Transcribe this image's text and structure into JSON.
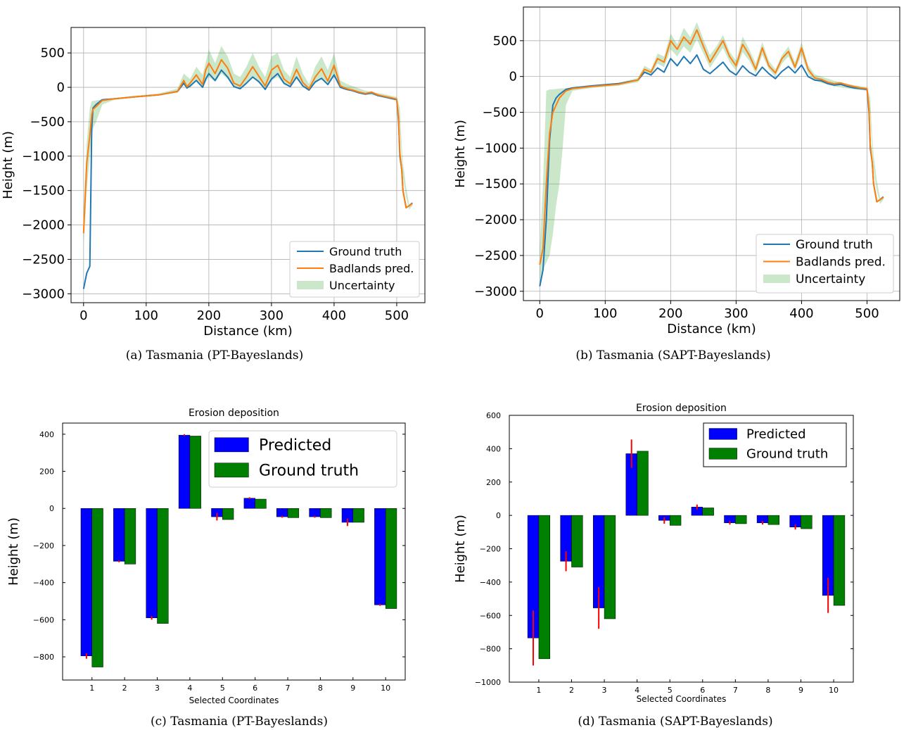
{
  "chart_data": [
    {
      "type": "line",
      "caption": "(a)  Tasmania (PT-Bayeslands)",
      "title": "",
      "xlabel": "Distance (km)",
      "ylabel": "Height (m)",
      "xlim": [
        -20,
        545
      ],
      "ylim": [
        -3130,
        870
      ],
      "xticks": [
        0,
        100,
        200,
        300,
        400,
        500
      ],
      "yticks": [
        500,
        0,
        -500,
        -1000,
        -1500,
        -2000,
        -2500,
        -3000
      ],
      "legend": {
        "position": "lower-right",
        "entries": [
          "Ground truth",
          "Badlands pred.",
          "Uncertainty"
        ]
      },
      "series": [
        {
          "name": "Ground truth",
          "color": "#1f77b4",
          "x": [
            0,
            5,
            10,
            13,
            15,
            20,
            30,
            50,
            80,
            120,
            150,
            160,
            165,
            170,
            180,
            190,
            195,
            200,
            210,
            220,
            230,
            240,
            250,
            260,
            270,
            280,
            290,
            300,
            310,
            320,
            330,
            340,
            350,
            360,
            370,
            380,
            390,
            400,
            410,
            420,
            430,
            440,
            450,
            460,
            470,
            480,
            490,
            495,
            500,
            503,
            505,
            508,
            510,
            515,
            520,
            525
          ],
          "y": [
            -2930,
            -2700,
            -2600,
            -600,
            -300,
            -250,
            -180,
            -165,
            -140,
            -110,
            -60,
            60,
            -10,
            20,
            100,
            0,
            120,
            200,
            100,
            250,
            150,
            10,
            -20,
            60,
            150,
            80,
            -30,
            120,
            200,
            60,
            10,
            150,
            20,
            -40,
            80,
            130,
            40,
            180,
            0,
            -30,
            -50,
            -80,
            -100,
            -80,
            -120,
            -140,
            -160,
            -170,
            -180,
            -500,
            -1000,
            -1200,
            -1500,
            -1750,
            -1720,
            -1680
          ]
        },
        {
          "name": "Badlands pred.",
          "color": "#ff7f0e",
          "x": [
            0,
            5,
            10,
            13,
            15,
            20,
            30,
            50,
            80,
            120,
            150,
            160,
            165,
            170,
            180,
            190,
            195,
            200,
            210,
            220,
            230,
            240,
            250,
            260,
            270,
            280,
            290,
            300,
            310,
            320,
            330,
            340,
            350,
            360,
            370,
            380,
            390,
            400,
            410,
            420,
            430,
            440,
            450,
            460,
            470,
            480,
            490,
            495,
            500,
            503,
            505,
            508,
            510,
            515,
            520,
            525
          ],
          "y": [
            -2120,
            -1100,
            -700,
            -400,
            -320,
            -280,
            -190,
            -165,
            -140,
            -110,
            -60,
            100,
            10,
            60,
            180,
            40,
            250,
            350,
            200,
            400,
            280,
            60,
            20,
            150,
            300,
            160,
            20,
            250,
            320,
            120,
            50,
            260,
            70,
            -20,
            150,
            270,
            90,
            320,
            20,
            -20,
            -40,
            -70,
            -90,
            -70,
            -110,
            -130,
            -150,
            -160,
            -170,
            -450,
            -950,
            -1200,
            -1500,
            -1750,
            -1720,
            -1690
          ]
        },
        {
          "name": "Uncertainty",
          "color": "#2ca02c",
          "opacity": 0.25,
          "x": [
            0,
            5,
            10,
            13,
            15,
            20,
            30,
            50,
            80,
            120,
            150,
            160,
            170,
            180,
            190,
            200,
            210,
            220,
            230,
            240,
            250,
            260,
            270,
            280,
            290,
            300,
            310,
            320,
            330,
            340,
            350,
            360,
            370,
            380,
            390,
            400,
            410,
            420,
            450,
            480,
            500,
            505,
            508,
            510,
            515,
            520,
            525
          ],
          "upper": [
            -1800,
            -800,
            -300,
            -200,
            -200,
            -190,
            -175,
            -155,
            -125,
            -90,
            -20,
            200,
            120,
            300,
            180,
            550,
            350,
            600,
            450,
            200,
            150,
            300,
            500,
            300,
            150,
            450,
            500,
            250,
            150,
            450,
            200,
            50,
            300,
            450,
            250,
            500,
            100,
            50,
            -50,
            -100,
            -140,
            -300,
            -850,
            -1100,
            -1450,
            -1700,
            -1680
          ],
          "lower": [
            -2300,
            -1500,
            -1000,
            -700,
            -600,
            -500,
            -250,
            -180,
            -150,
            -120,
            -80,
            40,
            -10,
            100,
            0,
            150,
            80,
            200,
            120,
            0,
            -20,
            60,
            150,
            60,
            -20,
            100,
            150,
            40,
            0,
            120,
            20,
            -40,
            60,
            120,
            50,
            150,
            -10,
            -40,
            -100,
            -140,
            -180,
            -550,
            -1050,
            -1300,
            -1600,
            -1780,
            -1720
          ]
        }
      ]
    },
    {
      "type": "line",
      "caption": "(b)  Tasmania (SAPT-Bayeslands)",
      "title": "",
      "xlabel": "Distance (km)",
      "ylabel": "Height (m)",
      "xlim": [
        -25,
        550
      ],
      "ylim": [
        -3130,
        970
      ],
      "xticks": [
        0,
        100,
        200,
        300,
        400,
        500
      ],
      "yticks": [
        500,
        0,
        -500,
        -1000,
        -1500,
        -2000,
        -2500,
        -3000
      ],
      "legend": {
        "position": "lower-right",
        "entries": [
          "Ground truth",
          "Badlands pred.",
          "Uncertainty"
        ]
      },
      "series": [
        {
          "name": "Ground truth",
          "color": "#1f77b4",
          "x": [
            0,
            5,
            10,
            15,
            20,
            25,
            30,
            40,
            50,
            80,
            120,
            150,
            160,
            170,
            180,
            190,
            200,
            210,
            220,
            230,
            240,
            250,
            260,
            270,
            280,
            290,
            300,
            310,
            320,
            330,
            340,
            350,
            360,
            370,
            380,
            390,
            400,
            410,
            420,
            430,
            440,
            450,
            460,
            470,
            480,
            490,
            500,
            503,
            505,
            508,
            510,
            515,
            520,
            525
          ],
          "y": [
            -2930,
            -2700,
            -2000,
            -900,
            -400,
            -300,
            -250,
            -180,
            -160,
            -130,
            -100,
            -50,
            60,
            20,
            120,
            60,
            250,
            150,
            280,
            180,
            300,
            100,
            40,
            120,
            200,
            80,
            20,
            150,
            60,
            10,
            130,
            40,
            -30,
            70,
            140,
            50,
            160,
            0,
            -50,
            -60,
            -100,
            -120,
            -110,
            -140,
            -160,
            -170,
            -180,
            -500,
            -1000,
            -1200,
            -1500,
            -1750,
            -1720,
            -1680
          ]
        },
        {
          "name": "Badlands pred.",
          "color": "#ff7f0e",
          "x": [
            0,
            5,
            10,
            15,
            20,
            25,
            30,
            40,
            50,
            80,
            120,
            150,
            160,
            170,
            180,
            190,
            200,
            210,
            220,
            230,
            240,
            250,
            260,
            270,
            280,
            290,
            300,
            310,
            320,
            330,
            340,
            350,
            360,
            370,
            380,
            390,
            400,
            410,
            420,
            430,
            440,
            450,
            460,
            470,
            480,
            490,
            500,
            503,
            505,
            508,
            510,
            515,
            520,
            525
          ],
          "y": [
            -2630,
            -2400,
            -1500,
            -800,
            -500,
            -400,
            -300,
            -200,
            -170,
            -140,
            -110,
            -50,
            100,
            60,
            250,
            200,
            500,
            380,
            550,
            450,
            650,
            420,
            200,
            350,
            500,
            280,
            150,
            450,
            300,
            100,
            400,
            150,
            50,
            250,
            350,
            130,
            400,
            100,
            -20,
            -40,
            -80,
            -100,
            -90,
            -120,
            -140,
            -160,
            -170,
            -450,
            -950,
            -1200,
            -1500,
            -1750,
            -1720,
            -1690
          ]
        },
        {
          "name": "Uncertainty",
          "color": "#2ca02c",
          "opacity": 0.25,
          "x": [
            0,
            5,
            10,
            15,
            20,
            25,
            30,
            35,
            40,
            50,
            80,
            120,
            150,
            160,
            170,
            180,
            190,
            200,
            210,
            220,
            230,
            240,
            250,
            260,
            270,
            280,
            290,
            300,
            310,
            320,
            330,
            340,
            350,
            360,
            370,
            380,
            390,
            400,
            410,
            420,
            450,
            480,
            500,
            505,
            508,
            510,
            515,
            520,
            525
          ],
          "upper": [
            -2400,
            -1500,
            -200,
            -180,
            -180,
            -175,
            -170,
            -165,
            -165,
            -150,
            -120,
            -90,
            -20,
            150,
            100,
            320,
            280,
            600,
            450,
            680,
            550,
            760,
            520,
            300,
            420,
            580,
            350,
            220,
            560,
            380,
            180,
            480,
            220,
            100,
            300,
            420,
            200,
            480,
            160,
            30,
            -60,
            -120,
            -150,
            -300,
            -850,
            -1100,
            -1450,
            -1700,
            -1680
          ],
          "lower": [
            -2900,
            -2700,
            -2600,
            -2500,
            -2200,
            -1800,
            -1500,
            -1000,
            -400,
            -200,
            -160,
            -130,
            -80,
            50,
            20,
            180,
            130,
            380,
            280,
            420,
            330,
            520,
            320,
            120,
            260,
            400,
            200,
            80,
            340,
            220,
            40,
            300,
            100,
            0,
            180,
            280,
            80,
            300,
            40,
            -60,
            -140,
            -180,
            -200,
            -550,
            -1050,
            -1300,
            -1600,
            -1780,
            -1720
          ]
        }
      ]
    },
    {
      "type": "bar",
      "caption": "(c)  Tasmania (PT-Bayeslands)",
      "title": "Erosion deposition",
      "xlabel": "Selected Coordinates",
      "ylabel": "Height (m)",
      "categories": [
        "1",
        "2",
        "3",
        "4",
        "5",
        "6",
        "7",
        "8",
        "9",
        "10"
      ],
      "ylim": [
        -925,
        460
      ],
      "yticks": [
        400,
        200,
        0,
        -200,
        -400,
        -600,
        -800
      ],
      "legend": {
        "position": "top-right",
        "entries": [
          "Predicted",
          "Ground truth"
        ]
      },
      "series": [
        {
          "name": "Predicted",
          "color": "#0000ff",
          "values": [
            -795,
            -285,
            -590,
            395,
            -45,
            55,
            -45,
            -45,
            -75,
            -520
          ],
          "errors": [
            15,
            5,
            10,
            5,
            20,
            5,
            5,
            5,
            20,
            5
          ]
        },
        {
          "name": "Ground truth",
          "color": "#008000",
          "values": [
            -855,
            -300,
            -620,
            390,
            -60,
            50,
            -50,
            -50,
            -75,
            -540
          ]
        }
      ]
    },
    {
      "type": "bar",
      "caption": "(d)  Tasmania (SAPT-Bayeslands)",
      "title": "Erosion deposition",
      "xlabel": "Selected Coordinates",
      "ylabel": "Height (m)",
      "categories": [
        "1",
        "2",
        "3",
        "4",
        "5",
        "6",
        "7",
        "8",
        "9",
        "10"
      ],
      "ylim": [
        -1000,
        600
      ],
      "yticks": [
        600,
        400,
        200,
        0,
        -200,
        -400,
        -600,
        -800,
        -1000
      ],
      "legend": {
        "position": "top-right",
        "entries": [
          "Predicted",
          "Ground truth"
        ]
      },
      "series": [
        {
          "name": "Predicted",
          "color": "#0000ff",
          "values": [
            -735,
            -275,
            -555,
            370,
            -30,
            50,
            -45,
            -45,
            -70,
            -480
          ],
          "errors": [
            165,
            60,
            125,
            85,
            20,
            15,
            10,
            10,
            15,
            105
          ]
        },
        {
          "name": "Ground truth",
          "color": "#008000",
          "values": [
            -860,
            -310,
            -620,
            385,
            -60,
            45,
            -50,
            -55,
            -80,
            -540
          ]
        }
      ]
    }
  ]
}
